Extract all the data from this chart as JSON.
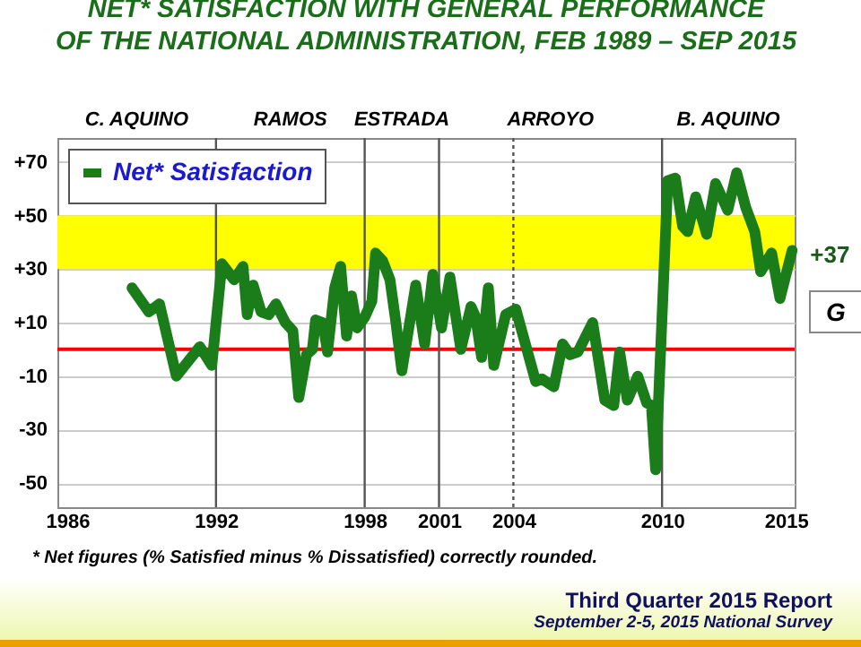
{
  "chart_data": {
    "type": "line",
    "title": [
      "NET* SATISFACTION WITH GENERAL PERFORMANCE",
      "OF THE NATIONAL ADMINISTRATION, FEB 1989 – SEP 2015"
    ],
    "series": [
      {
        "name": "Net* Satisfaction",
        "color": "#1a7d1a",
        "x": [
          1988.61,
          1989.29,
          1989.72,
          1990.4,
          1991.35,
          1991.83,
          1992.24,
          1992.73,
          1993.09,
          1993.26,
          1993.5,
          1993.82,
          1994.13,
          1994.42,
          1994.8,
          1995.1,
          1995.34,
          1995.65,
          1995.89,
          1996.02,
          1996.31,
          1996.5,
          1996.79,
          1997.03,
          1997.27,
          1997.47,
          1997.69,
          1998,
          1998.29,
          1998.44,
          1998.73,
          1999.02,
          1999.26,
          1999.5,
          2000.06,
          2000.42,
          2000.75,
          2001.1,
          2001.44,
          2001.88,
          2002.29,
          2002.48,
          2002.72,
          2002.99,
          2003.21,
          2003.69,
          2004.1,
          2004.9,
          2005.15,
          2005.63,
          2005.99,
          2006.28,
          2006.6,
          2007.2,
          2007.69,
          2008.05,
          2008.29,
          2008.6,
          2009.02,
          2009.38,
          2009.57,
          2009.74,
          2010.23,
          2010.54,
          2010.83,
          2011.03,
          2011.36,
          2011.8,
          2012.16,
          2012.65,
          2013.01,
          2013.38,
          2013.74,
          2013.98,
          2014.42,
          2014.76,
          2015.25
        ],
        "values": [
          23,
          14,
          17,
          -10,
          1,
          -6,
          32,
          26,
          31,
          13,
          24,
          14,
          13,
          17,
          10,
          7,
          -18,
          -2,
          0,
          11,
          10,
          -1,
          23,
          31,
          5,
          20,
          8,
          12,
          18,
          36,
          33,
          26,
          10,
          -8,
          24,
          2,
          28,
          8,
          27,
          0,
          16,
          12,
          -3,
          23,
          -6,
          13,
          15,
          -12,
          -11,
          -14,
          2,
          -2,
          -1,
          10,
          -19,
          -21,
          -1,
          -19,
          -10,
          -20,
          -21,
          -45,
          63,
          64,
          46,
          44,
          57,
          43,
          62,
          52,
          66,
          53,
          44,
          29,
          36,
          19,
          37
        ]
      }
    ],
    "xlim": [
      1985.6,
      2015.35
    ],
    "xticks": [
      1986,
      1992,
      1998,
      2001,
      2004,
      2010,
      2015
    ],
    "ylim": [
      -59,
      79
    ],
    "yticks": [
      {
        "value": 70,
        "label": "+70"
      },
      {
        "value": 50,
        "label": "+50"
      },
      {
        "value": 30,
        "label": "+30"
      },
      {
        "value": 10,
        "label": "+10"
      },
      -10,
      -30,
      -50
    ],
    "grid": "y",
    "legend": "top left",
    "line_style": "solid",
    "marker": "none",
    "bands": [
      {
        "axis": "y",
        "from": 30,
        "to": 50,
        "color": "#ffff00"
      }
    ],
    "ref_lines": [
      {
        "axis": "y",
        "value": 0,
        "color": "#ff0000",
        "line_style": "solid"
      },
      {
        "axis": "x",
        "value": 1992,
        "color": "#555555",
        "line_style": "solid"
      },
      {
        "axis": "x",
        "value": 1998,
        "color": "#555555",
        "line_style": "solid"
      },
      {
        "axis": "x",
        "value": 2001,
        "color": "#555555",
        "line_style": "solid"
      },
      {
        "axis": "x",
        "value": 2004,
        "color": "#555555",
        "line_style": "dotted"
      },
      {
        "axis": "x",
        "value": 2010,
        "color": "#555555",
        "line_style": "solid"
      }
    ],
    "annotations": [
      "G",
      "C. AQUINO",
      "RAMOS",
      "ESTRADA",
      "ARROYO",
      "B. AQUINO",
      {
        "text": "+37",
        "x": 2015.25,
        "y": 37
      },
      "* Net figures (% Satisfied minus % Dissatisfied) correctly rounded.",
      "Third Quarter 2015 Report",
      "September 2-5, 2015 National Survey"
    ]
  }
}
